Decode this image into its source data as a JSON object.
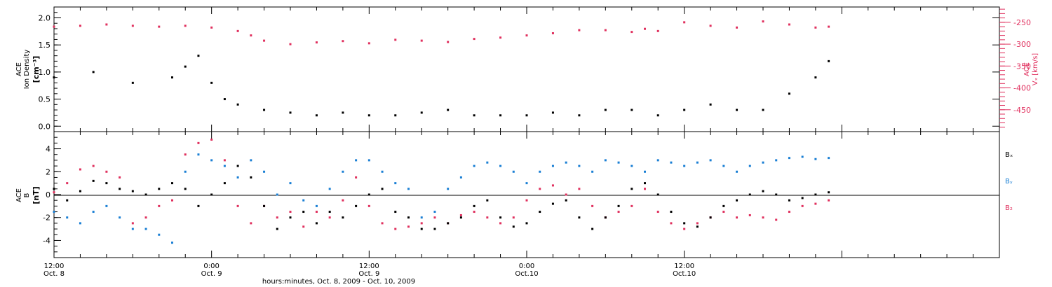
{
  "colors": {
    "black": "#000000",
    "red": "#e0305e",
    "blue": "#1a7fd4",
    "axis": "#000000"
  },
  "labels": {
    "top_left_line1": "ACE",
    "top_left_line2": "Ion Density",
    "top_left_unit": "[cm⁻³]",
    "top_right_line1": "ACE",
    "top_right_line2": "Vₓ [km/s]",
    "bottom_left_line1": "ACE",
    "bottom_left_line2": "B",
    "bottom_left_unit": "[nT]",
    "legend_bx": "Bₓ",
    "legend_by": "Bᵧ",
    "legend_bz": "B₂",
    "x_title": "hours:minutes, Oct.  8, 2009 - Oct. 10, 2009"
  },
  "chart_data": [
    {
      "type": "scatter",
      "panel": "top",
      "ylabel": "ACE Ion Density [cm⁻³]",
      "y2label": "ACE Vₓ [km/s]",
      "xlim": [
        0,
        72
      ],
      "ylim": [
        -0.1,
        2.2
      ],
      "y2lim": [
        -500,
        -215
      ],
      "y_ticks": [
        "0.0",
        "0.5",
        "1.0",
        "1.5",
        "2.0"
      ],
      "y2_ticks": [
        "-250",
        "-300",
        "-350",
        "-400",
        "-450"
      ],
      "series": [
        {
          "color_key": "black",
          "axis": "left",
          "x": [
            0,
            3,
            6,
            9,
            10,
            11,
            12,
            13,
            14,
            16,
            18,
            20,
            22,
            24,
            26,
            28,
            30,
            32,
            34,
            36,
            38,
            40,
            42,
            44,
            46,
            48,
            50,
            52,
            54,
            56,
            58,
            59
          ],
          "y": [
            0.9,
            1.0,
            0.8,
            0.9,
            1.1,
            1.3,
            0.8,
            0.5,
            0.4,
            0.3,
            0.25,
            0.2,
            0.25,
            0.2,
            0.2,
            0.25,
            0.3,
            0.2,
            0.2,
            0.2,
            0.25,
            0.2,
            0.3,
            0.3,
            0.2,
            0.3,
            0.4,
            0.3,
            0.3,
            0.6,
            0.9,
            1.2
          ]
        },
        {
          "color_key": "red",
          "axis": "right",
          "x": [
            0,
            2,
            4,
            6,
            8,
            10,
            12,
            14,
            15,
            16,
            18,
            20,
            22,
            24,
            26,
            28,
            30,
            32,
            34,
            36,
            38,
            40,
            42,
            44,
            45,
            46,
            48,
            50,
            52,
            54,
            56,
            58,
            59
          ],
          "y": [
            -260,
            -258,
            -255,
            -258,
            -260,
            -258,
            -262,
            -270,
            -280,
            -292,
            -300,
            -296,
            -293,
            -298,
            -290,
            -292,
            -295,
            -288,
            -285,
            -280,
            -275,
            -268,
            -268,
            -272,
            -265,
            -270,
            -250,
            -258,
            -262,
            -248,
            -255,
            -262,
            -260
          ]
        }
      ]
    },
    {
      "type": "scatter",
      "panel": "bottom",
      "ylabel": "ACE B [nT]",
      "xlim": [
        0,
        72
      ],
      "ylim": [
        -5.5,
        5.5
      ],
      "y_ticks": [
        "4",
        "2",
        "0",
        "-2",
        "-4"
      ],
      "x_ticks": [
        {
          "t": 0,
          "line1": "12:00",
          "line2": "Oct. 8"
        },
        {
          "t": 12,
          "line1": "0:00",
          "line2": "Oct. 9"
        },
        {
          "t": 24,
          "line1": "12:00",
          "line2": "Oct. 9"
        },
        {
          "t": 36,
          "line1": "0:00",
          "line2": "Oct.10"
        },
        {
          "t": 48,
          "line1": "12:00",
          "line2": "Oct.10"
        }
      ],
      "series": [
        {
          "name": "Bx",
          "color_key": "black",
          "x": [
            0,
            1,
            2,
            3,
            4,
            5,
            6,
            7,
            8,
            9,
            10,
            11,
            12,
            13,
            14,
            15,
            16,
            17,
            18,
            19,
            20,
            21,
            22,
            23,
            24,
            25,
            26,
            27,
            28,
            29,
            30,
            31,
            32,
            33,
            34,
            35,
            36,
            37,
            38,
            39,
            40,
            41,
            42,
            43,
            44,
            45,
            46,
            47,
            48,
            49,
            50,
            51,
            52,
            53,
            54,
            55,
            56,
            57,
            58,
            59
          ],
          "y": [
            0.5,
            -0.5,
            0.3,
            1.2,
            1.0,
            0.5,
            0.3,
            0.0,
            0.5,
            1.0,
            0.5,
            -1.0,
            0.0,
            1.0,
            2.5,
            1.5,
            -1.0,
            -3.0,
            -2.0,
            -1.5,
            -2.5,
            -1.5,
            -2.0,
            -1.0,
            0.0,
            0.5,
            -1.5,
            -2.0,
            -3.0,
            -3.0,
            -2.5,
            -2.0,
            -1.0,
            -0.5,
            -2.0,
            -2.8,
            -2.5,
            -1.5,
            -0.8,
            -0.5,
            -2.0,
            -3.0,
            -2.0,
            -1.0,
            0.5,
            1.0,
            0.0,
            -1.5,
            -2.5,
            -2.8,
            -2.0,
            -1.0,
            -0.5,
            0.0,
            0.3,
            0.0,
            -0.5,
            -0.3,
            0.0,
            0.2
          ]
        },
        {
          "name": "By",
          "color_key": "blue",
          "x": [
            0,
            1,
            2,
            3,
            4,
            5,
            6,
            7,
            8,
            9,
            10,
            11,
            12,
            13,
            14,
            15,
            16,
            17,
            18,
            19,
            20,
            21,
            22,
            23,
            24,
            25,
            26,
            27,
            28,
            29,
            30,
            31,
            32,
            33,
            34,
            35,
            36,
            37,
            38,
            39,
            40,
            41,
            42,
            43,
            44,
            45,
            46,
            47,
            48,
            49,
            50,
            51,
            52,
            53,
            54,
            55,
            56,
            57,
            58,
            59
          ],
          "y": [
            -1.5,
            -2.0,
            -2.5,
            -1.5,
            -1.0,
            -2.0,
            -3.0,
            -3.0,
            -3.5,
            -4.2,
            2.0,
            3.5,
            3.0,
            2.5,
            1.5,
            3.0,
            2.0,
            0.0,
            1.0,
            -0.5,
            -1.0,
            0.5,
            2.0,
            3.0,
            3.0,
            2.0,
            1.0,
            0.5,
            -2.0,
            -1.5,
            0.5,
            1.5,
            2.5,
            2.8,
            2.5,
            2.0,
            1.0,
            2.0,
            2.5,
            2.8,
            2.5,
            2.0,
            3.0,
            2.8,
            2.5,
            2.0,
            3.0,
            2.8,
            2.5,
            2.8,
            3.0,
            2.5,
            2.0,
            2.5,
            2.8,
            3.0,
            3.2,
            3.3,
            3.1,
            3.2
          ]
        },
        {
          "name": "Bz",
          "color_key": "red",
          "x": [
            0,
            1,
            2,
            3,
            4,
            5,
            6,
            7,
            8,
            9,
            10,
            11,
            12,
            13,
            14,
            15,
            16,
            17,
            18,
            19,
            20,
            21,
            22,
            23,
            24,
            25,
            26,
            27,
            28,
            29,
            30,
            31,
            32,
            33,
            34,
            35,
            36,
            37,
            38,
            39,
            40,
            41,
            42,
            43,
            44,
            45,
            46,
            47,
            48,
            49,
            50,
            51,
            52,
            53,
            54,
            55,
            56,
            57,
            58,
            59
          ],
          "y": [
            0.2,
            1.0,
            2.2,
            2.5,
            2.0,
            1.5,
            -2.5,
            -2.0,
            -1.0,
            -0.5,
            3.5,
            4.5,
            4.8,
            3.0,
            -1.0,
            -2.5,
            -1.0,
            -2.0,
            -1.5,
            -2.8,
            -1.5,
            -2.0,
            -0.5,
            1.5,
            -1.0,
            -2.5,
            -3.0,
            -2.8,
            -2.5,
            -2.0,
            -2.5,
            -1.8,
            -1.5,
            -2.0,
            -2.5,
            -2.0,
            -0.5,
            0.5,
            0.8,
            0.0,
            0.5,
            -1.0,
            -2.0,
            -1.5,
            -1.0,
            0.5,
            -1.5,
            -2.5,
            -3.0,
            -2.5,
            -2.0,
            -1.5,
            -2.0,
            -1.8,
            -2.0,
            -2.2,
            -1.5,
            -1.0,
            -0.8,
            -0.5
          ]
        }
      ]
    }
  ]
}
